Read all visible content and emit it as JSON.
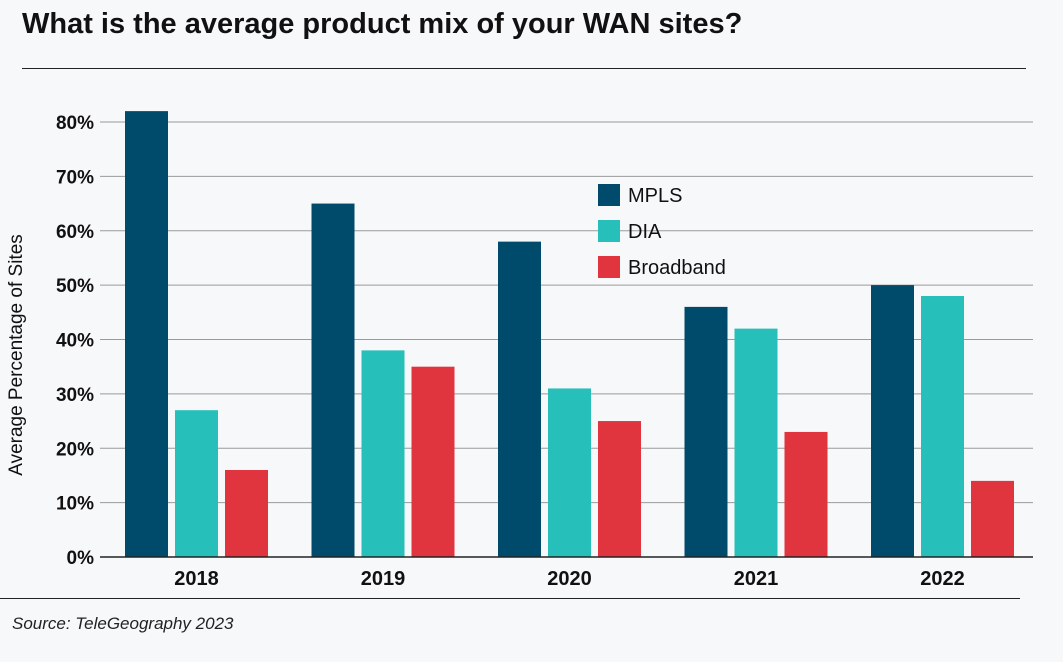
{
  "chart_data": {
    "type": "bar",
    "title": "What is the average product mix of your WAN sites?",
    "xlabel": "",
    "ylabel": "Average Percentage of Sites",
    "categories": [
      "2018",
      "2019",
      "2020",
      "2021",
      "2022"
    ],
    "series": [
      {
        "name": "MPLS",
        "color": "#004b6b",
        "values": [
          82,
          65,
          58,
          46,
          50
        ]
      },
      {
        "name": "DIA",
        "color": "#26bfb9",
        "values": [
          27,
          38,
          31,
          42,
          48
        ]
      },
      {
        "name": "Broadband",
        "color": "#e0343f",
        "values": [
          16,
          35,
          25,
          23,
          14
        ]
      }
    ],
    "ylim": [
      0,
      80
    ],
    "yticks": [
      "0%",
      "10%",
      "20%",
      "30%",
      "40%",
      "50%",
      "60%",
      "70%",
      "80%"
    ],
    "grid": true,
    "legend_position": "top-center",
    "source": "Source: TeleGeography 2023"
  }
}
